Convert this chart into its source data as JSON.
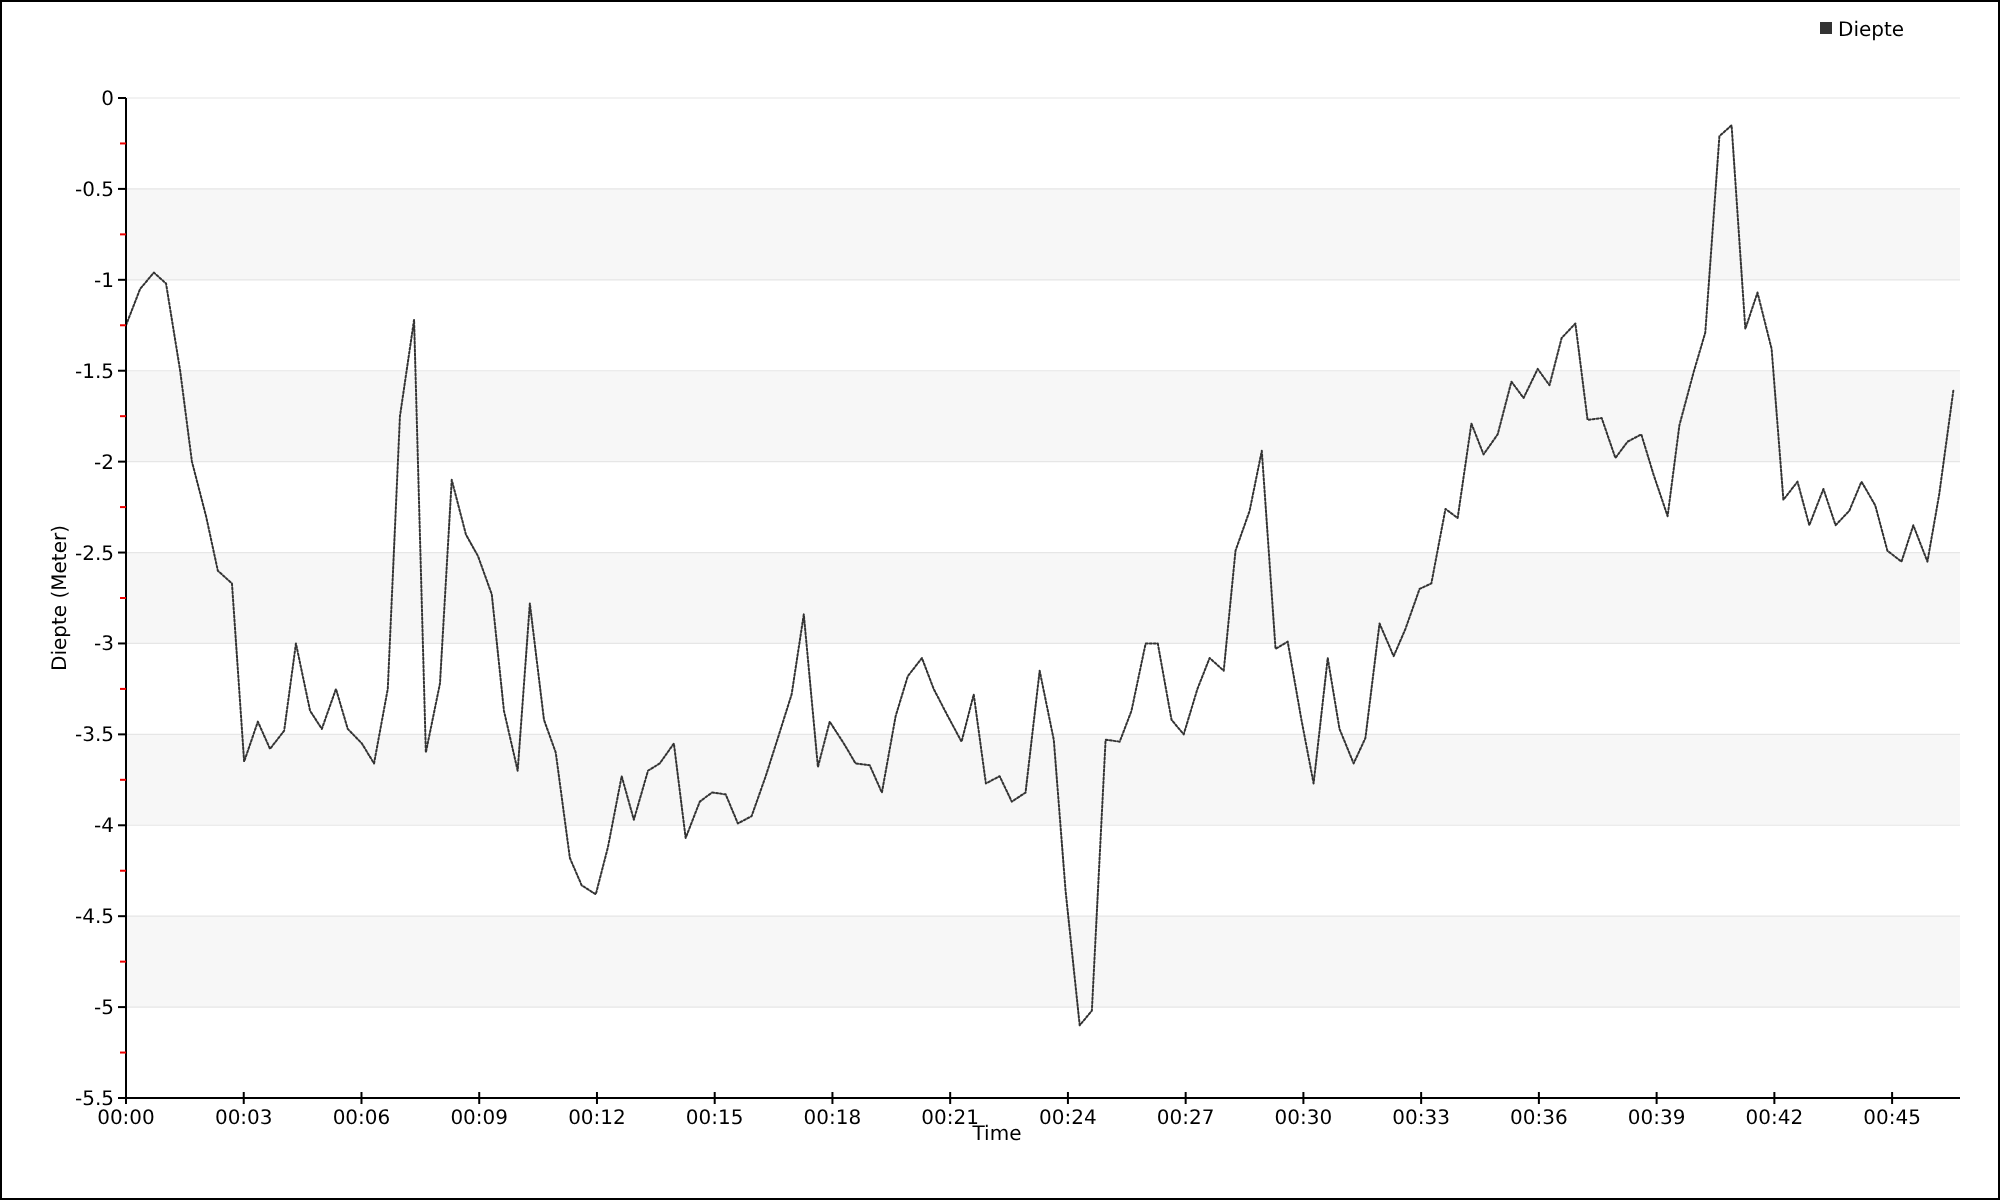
{
  "chart_data": {
    "type": "line",
    "xlabel": "Time",
    "ylabel": "Diepte (Meter)",
    "legend": "top right",
    "grid": "y",
    "line_style": "dotted",
    "marker": "none",
    "xlim": [
      0,
      46.73
    ],
    "xticks": [
      {
        "value": 0,
        "label": "00:00"
      },
      {
        "value": 3,
        "label": "00:03"
      },
      {
        "value": 6,
        "label": "00:06"
      },
      {
        "value": 9,
        "label": "00:09"
      },
      {
        "value": 12,
        "label": "00:12"
      },
      {
        "value": 15,
        "label": "00:15"
      },
      {
        "value": 18,
        "label": "00:18"
      },
      {
        "value": 21,
        "label": "00:21"
      },
      {
        "value": 24,
        "label": "00:24"
      },
      {
        "value": 27,
        "label": "00:27"
      },
      {
        "value": 30,
        "label": "00:30"
      },
      {
        "value": 33,
        "label": "00:33"
      },
      {
        "value": 36,
        "label": "00:36"
      },
      {
        "value": 39,
        "label": "00:39"
      },
      {
        "value": 42,
        "label": "00:42"
      },
      {
        "value": 45,
        "label": "00:45"
      }
    ],
    "ylim": [
      -5.5,
      0
    ],
    "yticks": [
      0,
      {
        "value": -0.25,
        "label": null
      },
      -0.5,
      {
        "value": -0.75,
        "label": null
      },
      -1,
      {
        "value": -1.25,
        "label": null
      },
      -1.5,
      {
        "value": -1.75,
        "label": null
      },
      -2,
      {
        "value": -2.25,
        "label": null
      },
      -2.5,
      {
        "value": -2.75,
        "label": null
      },
      -3,
      {
        "value": -3.25,
        "label": null
      },
      -3.5,
      {
        "value": -3.75,
        "label": null
      },
      -4,
      {
        "value": -4.25,
        "label": null
      },
      -4.5,
      {
        "value": -4.75,
        "label": null
      },
      -5,
      {
        "value": -5.25,
        "label": null
      },
      -5.5
    ],
    "x": [
      0,
      0.36,
      0.71,
      1.02,
      1.38,
      1.68,
      2.04,
      2.34,
      2.7,
      3.01,
      3.36,
      3.67,
      4.03,
      4.33,
      4.69,
      4.99,
      5.35,
      5.65,
      6.01,
      6.32,
      6.67,
      6.98,
      7.34,
      7.64,
      8.0,
      8.3,
      8.66,
      8.97,
      9.32,
      9.63,
      9.98,
      10.29,
      10.65,
      10.95,
      11.31,
      11.61,
      11.97,
      12.28,
      12.63,
      12.94,
      13.3,
      13.6,
      13.96,
      14.26,
      14.62,
      14.93,
      15.28,
      15.59,
      15.94,
      16.3,
      16.61,
      16.96,
      17.27,
      17.63,
      17.93,
      18.29,
      18.59,
      18.95,
      19.26,
      19.61,
      19.92,
      20.28,
      20.58,
      20.94,
      21.29,
      21.6,
      21.91,
      22.26,
      22.57,
      22.92,
      23.28,
      23.64,
      23.94,
      24.3,
      24.61,
      24.96,
      25.32,
      25.62,
      25.98,
      26.29,
      26.64,
      26.95,
      27.3,
      27.61,
      27.97,
      28.27,
      28.63,
      28.94,
      29.29,
      29.6,
      29.95,
      30.26,
      30.62,
      30.92,
      31.28,
      31.58,
      31.94,
      32.3,
      32.6,
      32.96,
      33.26,
      33.62,
      33.93,
      34.28,
      34.59,
      34.95,
      35.3,
      35.61,
      35.97,
      36.27,
      36.58,
      36.93,
      37.24,
      37.6,
      37.95,
      38.26,
      38.61,
      38.92,
      39.28,
      39.58,
      39.94,
      40.24,
      40.6,
      40.91,
      41.26,
      41.57,
      41.93,
      42.23,
      42.59,
      42.89,
      43.25,
      43.56,
      43.91,
      44.22,
      44.57,
      44.88,
      45.24,
      45.54,
      45.9,
      46.2,
      46.56
    ],
    "series": [
      {
        "name": "Diepte",
        "color": "#333333",
        "values": [
          -1.25,
          -1.05,
          -0.96,
          -1.02,
          -1.5,
          -2.0,
          -2.3,
          -2.6,
          -2.67,
          -3.65,
          -3.43,
          -3.58,
          -3.48,
          -3.0,
          -3.37,
          -3.47,
          -3.25,
          -3.47,
          -3.55,
          -3.66,
          -3.25,
          -1.75,
          -1.22,
          -3.6,
          -3.22,
          -2.1,
          -2.4,
          -2.52,
          -2.73,
          -3.37,
          -3.7,
          -2.78,
          -3.42,
          -3.6,
          -4.18,
          -4.33,
          -4.38,
          -4.12,
          -3.73,
          -3.97,
          -3.7,
          -3.66,
          -3.55,
          -4.07,
          -3.87,
          -3.82,
          -3.83,
          -3.99,
          -3.95,
          -3.73,
          -3.52,
          -3.28,
          -2.84,
          -3.68,
          -3.43,
          -3.55,
          -3.66,
          -3.67,
          -3.82,
          -3.4,
          -3.18,
          -3.08,
          -3.25,
          -3.4,
          -3.54,
          -3.28,
          -3.77,
          -3.73,
          -3.87,
          -3.82,
          -3.15,
          -3.53,
          -4.36,
          -5.1,
          -5.02,
          -3.53,
          -3.54,
          -3.37,
          -3.0,
          -3.0,
          -3.42,
          -3.5,
          -3.25,
          -3.08,
          -3.15,
          -2.49,
          -2.27,
          -1.94,
          -3.03,
          -2.99,
          -3.42,
          -3.77,
          -3.08,
          -3.47,
          -3.66,
          -3.52,
          -2.89,
          -3.07,
          -2.92,
          -2.7,
          -2.67,
          -2.26,
          -2.31,
          -1.79,
          -1.96,
          -1.85,
          -1.56,
          -1.65,
          -1.49,
          -1.58,
          -1.32,
          -1.24,
          -1.77,
          -1.76,
          -1.98,
          -1.89,
          -1.85,
          -2.07,
          -2.3,
          -1.8,
          -1.51,
          -1.29,
          -0.21,
          -0.15,
          -1.27,
          -1.07,
          -1.38,
          -2.21,
          -2.11,
          -2.35,
          -2.15,
          -2.35,
          -2.27,
          -2.11,
          -2.24,
          -2.49,
          -2.55,
          -2.35,
          -2.55,
          -2.18,
          -1.61
        ]
      }
    ]
  }
}
